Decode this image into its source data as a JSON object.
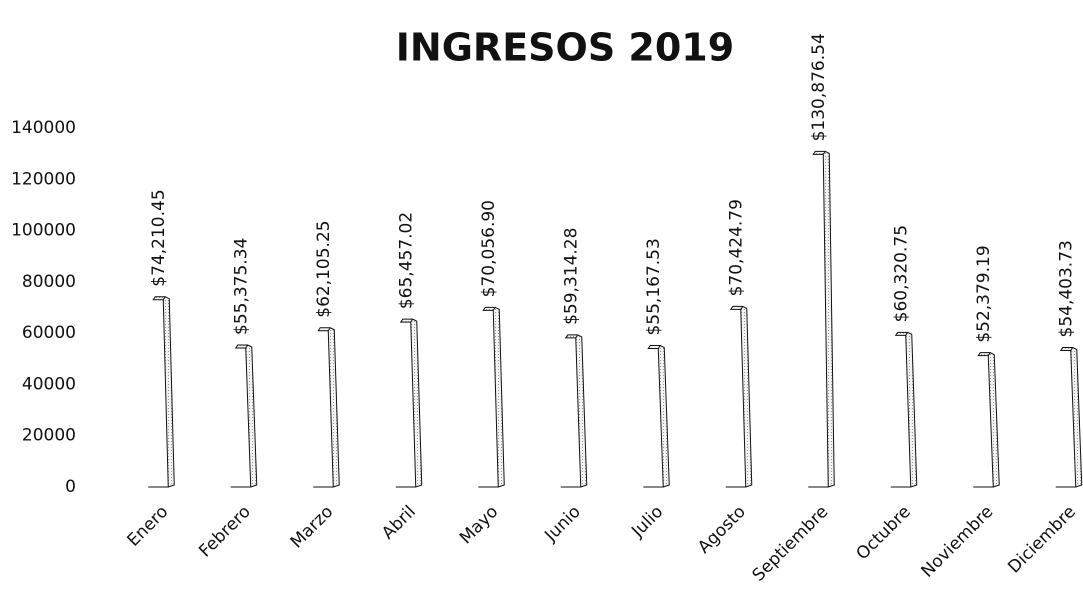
{
  "chart_data": {
    "type": "bar",
    "title": "INGRESOS 2019",
    "categories": [
      "Enero",
      "Febrero",
      "Marzo",
      "Abril",
      "Mayo",
      "Junio",
      "Julio",
      "Agosto",
      "Septiembre",
      "Octubre",
      "Noviembre",
      "Diciembre"
    ],
    "values": [
      74210.45,
      55375.34,
      62105.25,
      65457.02,
      70056.9,
      59314.28,
      55167.53,
      70424.79,
      130876.54,
      60320.75,
      52379.19,
      54403.73
    ],
    "value_labels": [
      "$74,210.45",
      "$55,375.34",
      "$62,105.25",
      "$65,457.02",
      "$70,056.90",
      "$59,314.28",
      "$55,167.53",
      "$70,424.79",
      "$130,876.54",
      "$60,320.75",
      "$52,379.19",
      "$54,403.73"
    ],
    "color": "#e6e6e6",
    "ylim": [
      0,
      140000
    ],
    "yticks": [
      0,
      20000,
      40000,
      60000,
      80000,
      100000,
      120000,
      140000
    ],
    "grid": false
  }
}
